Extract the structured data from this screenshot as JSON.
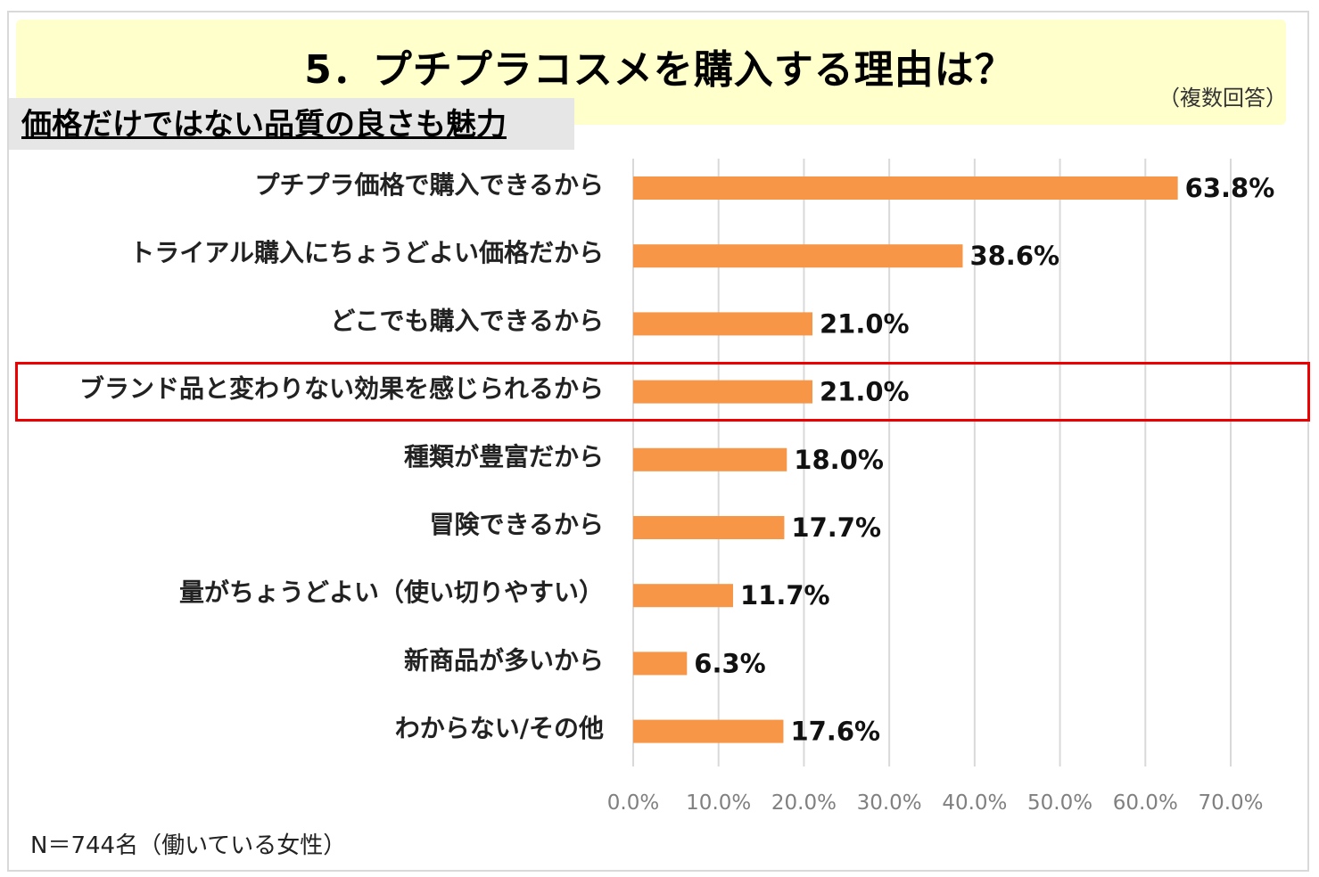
{
  "title": "5．プチプラコスメを購入する理由は？",
  "note": "（複数回答）",
  "subtitle": "価格だけではない品質の良さも魅力",
  "footer": "N＝744名（働いている女性）",
  "colors": {
    "bar": "#f79646",
    "highlight": "#ee0000",
    "banner": "#ffffcc"
  },
  "chart_data": {
    "type": "bar",
    "orientation": "horizontal",
    "categories": [
      "プチプラ価格で購入できるから",
      "トライアル購入にちょうどよい価格だから",
      "どこでも購入できるから",
      "ブランド品と変わりない効果を感じられるから",
      "種類が豊富だから",
      "冒険できるから",
      "量がちょうどよい（使い切りやすい）",
      "新商品が多いから",
      "わからない/その他"
    ],
    "values": [
      63.8,
      38.6,
      21.0,
      21.0,
      18.0,
      17.7,
      11.7,
      6.3,
      17.6
    ],
    "value_labels": [
      "63.8%",
      "38.6%",
      "21.0%",
      "21.0%",
      "18.0%",
      "17.7%",
      "11.7%",
      "6.3%",
      "17.6%"
    ],
    "highlighted_value_index": 0,
    "highlighted_category_index": 3,
    "xlim": [
      0,
      70
    ],
    "xticks": [
      "0.0%",
      "10.0%",
      "20.0%",
      "30.0%",
      "40.0%",
      "50.0%",
      "60.0%",
      "70.0%"
    ],
    "grid": true
  }
}
